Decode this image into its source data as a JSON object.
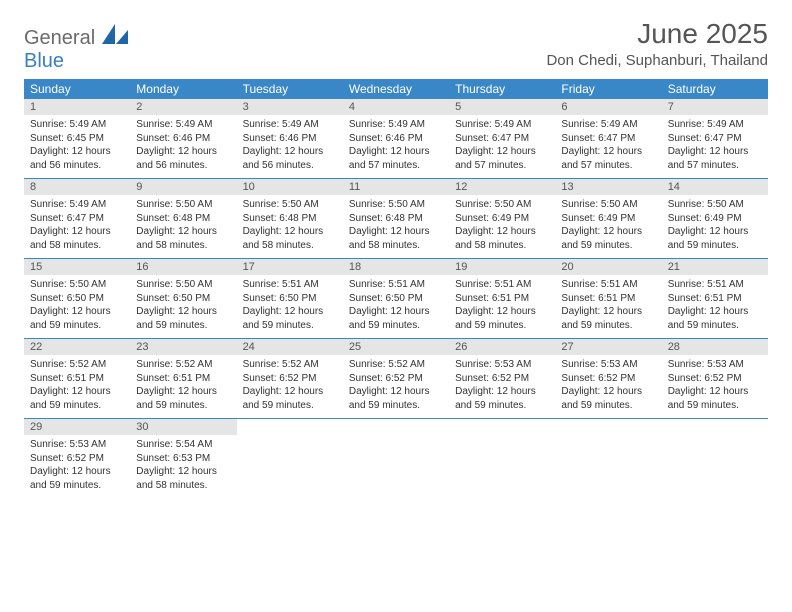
{
  "logo": {
    "line1": "General",
    "line2": "Blue",
    "icon_color": "#1e66a8"
  },
  "header": {
    "title": "June 2025",
    "location": "Don Chedi, Suphanburi, Thailand"
  },
  "colors": {
    "header_bg": "#3a87c7",
    "header_fg": "#ffffff",
    "daynum_bg": "#e5e5e5",
    "rule": "#3a87c7",
    "body_text": "#333333"
  },
  "weekdays": [
    "Sunday",
    "Monday",
    "Tuesday",
    "Wednesday",
    "Thursday",
    "Friday",
    "Saturday"
  ],
  "labels": {
    "sunrise": "Sunrise:",
    "sunset": "Sunset:",
    "daylight": "Daylight:"
  },
  "days": [
    {
      "n": 1,
      "sunrise": "5:49 AM",
      "sunset": "6:45 PM",
      "daylight": "12 hours and 56 minutes."
    },
    {
      "n": 2,
      "sunrise": "5:49 AM",
      "sunset": "6:46 PM",
      "daylight": "12 hours and 56 minutes."
    },
    {
      "n": 3,
      "sunrise": "5:49 AM",
      "sunset": "6:46 PM",
      "daylight": "12 hours and 56 minutes."
    },
    {
      "n": 4,
      "sunrise": "5:49 AM",
      "sunset": "6:46 PM",
      "daylight": "12 hours and 57 minutes."
    },
    {
      "n": 5,
      "sunrise": "5:49 AM",
      "sunset": "6:47 PM",
      "daylight": "12 hours and 57 minutes."
    },
    {
      "n": 6,
      "sunrise": "5:49 AM",
      "sunset": "6:47 PM",
      "daylight": "12 hours and 57 minutes."
    },
    {
      "n": 7,
      "sunrise": "5:49 AM",
      "sunset": "6:47 PM",
      "daylight": "12 hours and 57 minutes."
    },
    {
      "n": 8,
      "sunrise": "5:49 AM",
      "sunset": "6:47 PM",
      "daylight": "12 hours and 58 minutes."
    },
    {
      "n": 9,
      "sunrise": "5:50 AM",
      "sunset": "6:48 PM",
      "daylight": "12 hours and 58 minutes."
    },
    {
      "n": 10,
      "sunrise": "5:50 AM",
      "sunset": "6:48 PM",
      "daylight": "12 hours and 58 minutes."
    },
    {
      "n": 11,
      "sunrise": "5:50 AM",
      "sunset": "6:48 PM",
      "daylight": "12 hours and 58 minutes."
    },
    {
      "n": 12,
      "sunrise": "5:50 AM",
      "sunset": "6:49 PM",
      "daylight": "12 hours and 58 minutes."
    },
    {
      "n": 13,
      "sunrise": "5:50 AM",
      "sunset": "6:49 PM",
      "daylight": "12 hours and 59 minutes."
    },
    {
      "n": 14,
      "sunrise": "5:50 AM",
      "sunset": "6:49 PM",
      "daylight": "12 hours and 59 minutes."
    },
    {
      "n": 15,
      "sunrise": "5:50 AM",
      "sunset": "6:50 PM",
      "daylight": "12 hours and 59 minutes."
    },
    {
      "n": 16,
      "sunrise": "5:50 AM",
      "sunset": "6:50 PM",
      "daylight": "12 hours and 59 minutes."
    },
    {
      "n": 17,
      "sunrise": "5:51 AM",
      "sunset": "6:50 PM",
      "daylight": "12 hours and 59 minutes."
    },
    {
      "n": 18,
      "sunrise": "5:51 AM",
      "sunset": "6:50 PM",
      "daylight": "12 hours and 59 minutes."
    },
    {
      "n": 19,
      "sunrise": "5:51 AM",
      "sunset": "6:51 PM",
      "daylight": "12 hours and 59 minutes."
    },
    {
      "n": 20,
      "sunrise": "5:51 AM",
      "sunset": "6:51 PM",
      "daylight": "12 hours and 59 minutes."
    },
    {
      "n": 21,
      "sunrise": "5:51 AM",
      "sunset": "6:51 PM",
      "daylight": "12 hours and 59 minutes."
    },
    {
      "n": 22,
      "sunrise": "5:52 AM",
      "sunset": "6:51 PM",
      "daylight": "12 hours and 59 minutes."
    },
    {
      "n": 23,
      "sunrise": "5:52 AM",
      "sunset": "6:51 PM",
      "daylight": "12 hours and 59 minutes."
    },
    {
      "n": 24,
      "sunrise": "5:52 AM",
      "sunset": "6:52 PM",
      "daylight": "12 hours and 59 minutes."
    },
    {
      "n": 25,
      "sunrise": "5:52 AM",
      "sunset": "6:52 PM",
      "daylight": "12 hours and 59 minutes."
    },
    {
      "n": 26,
      "sunrise": "5:53 AM",
      "sunset": "6:52 PM",
      "daylight": "12 hours and 59 minutes."
    },
    {
      "n": 27,
      "sunrise": "5:53 AM",
      "sunset": "6:52 PM",
      "daylight": "12 hours and 59 minutes."
    },
    {
      "n": 28,
      "sunrise": "5:53 AM",
      "sunset": "6:52 PM",
      "daylight": "12 hours and 59 minutes."
    },
    {
      "n": 29,
      "sunrise": "5:53 AM",
      "sunset": "6:52 PM",
      "daylight": "12 hours and 59 minutes."
    },
    {
      "n": 30,
      "sunrise": "5:54 AM",
      "sunset": "6:53 PM",
      "daylight": "12 hours and 58 minutes."
    }
  ],
  "grid": {
    "columns": 7,
    "start_weekday": 0,
    "weeks": 5
  }
}
